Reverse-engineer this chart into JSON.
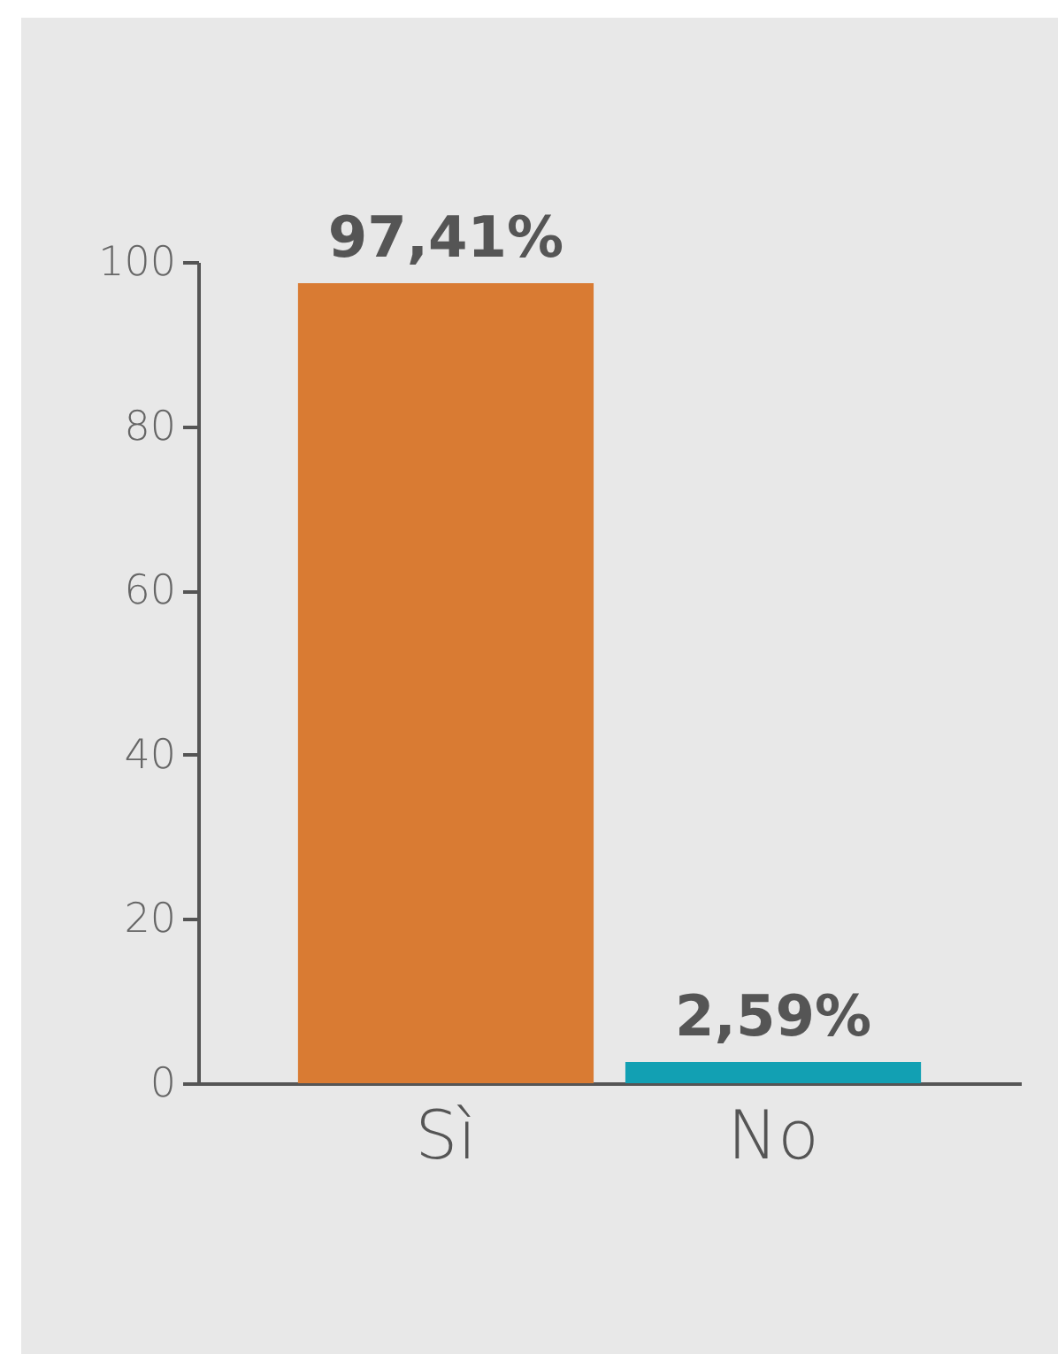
{
  "chart_data": {
    "type": "bar",
    "categories": [
      "Sì",
      "No"
    ],
    "values": [
      97.41,
      2.59
    ],
    "colors": [
      "#d97b33",
      "#12a0b3"
    ],
    "value_labels": [
      "97,41%",
      "2,59%"
    ],
    "ylim": [
      0,
      100
    ],
    "yticks": [
      0,
      20,
      40,
      60,
      80,
      100
    ],
    "grid": false,
    "legend": false
  }
}
